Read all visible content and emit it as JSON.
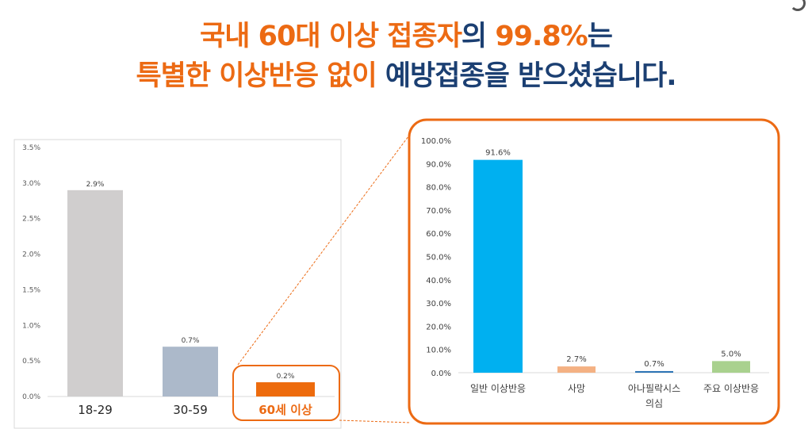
{
  "headline": {
    "line1": [
      {
        "text": "국내 60대 이상 접종자",
        "color": "orange"
      },
      {
        "text": "의 ",
        "color": "navy"
      },
      {
        "text": "99.8%",
        "color": "orange"
      },
      {
        "text": "는",
        "color": "navy"
      }
    ],
    "line2": [
      {
        "text": "특별한 이상반응 없이 ",
        "color": "orange"
      },
      {
        "text": "예방접종을 받으셨습니다.",
        "color": "navy"
      }
    ]
  },
  "colors": {
    "orange": "#ec6a13",
    "navy": "#1b3f72"
  },
  "chart_data": [
    {
      "type": "bar",
      "title": "",
      "categories": [
        "18-29",
        "30-59",
        "60세 이상"
      ],
      "values": [
        2.9,
        0.7,
        0.2
      ],
      "value_labels": [
        "2.9%",
        "0.7%",
        "0.2%"
      ],
      "bar_colors": [
        "#d0cece",
        "#acb9ca",
        "#ed6b0d"
      ],
      "ylim": [
        0,
        3.5
      ],
      "yticks": [
        "0.0%",
        "0.5%",
        "1.0%",
        "1.5%",
        "2.0%",
        "2.5%",
        "3.0%",
        "3.5%"
      ],
      "highlight_category": "60세 이상"
    },
    {
      "type": "bar",
      "title": "",
      "categories": [
        "일반 이상반응",
        "사망",
        "아나필락시스 의심",
        "주요 이상반응"
      ],
      "category_lines": [
        [
          "일반 이상반응"
        ],
        [
          "사망"
        ],
        [
          "아나필락시스",
          "의심"
        ],
        [
          "주요 이상반응"
        ]
      ],
      "values": [
        91.6,
        2.7,
        0.7,
        5.0
      ],
      "value_labels": [
        "91.6%",
        "2.7%",
        "0.7%",
        "5.0%"
      ],
      "bar_colors": [
        "#00b0f0",
        "#f4b183",
        "#2e75b6",
        "#a9d18e"
      ],
      "ylim": [
        0,
        100
      ],
      "yticks": [
        "0.0%",
        "10.0%",
        "20.0%",
        "30.0%",
        "40.0%",
        "50.0%",
        "60.0%",
        "70.0%",
        "80.0%",
        "90.0%",
        "100.0%"
      ]
    }
  ]
}
